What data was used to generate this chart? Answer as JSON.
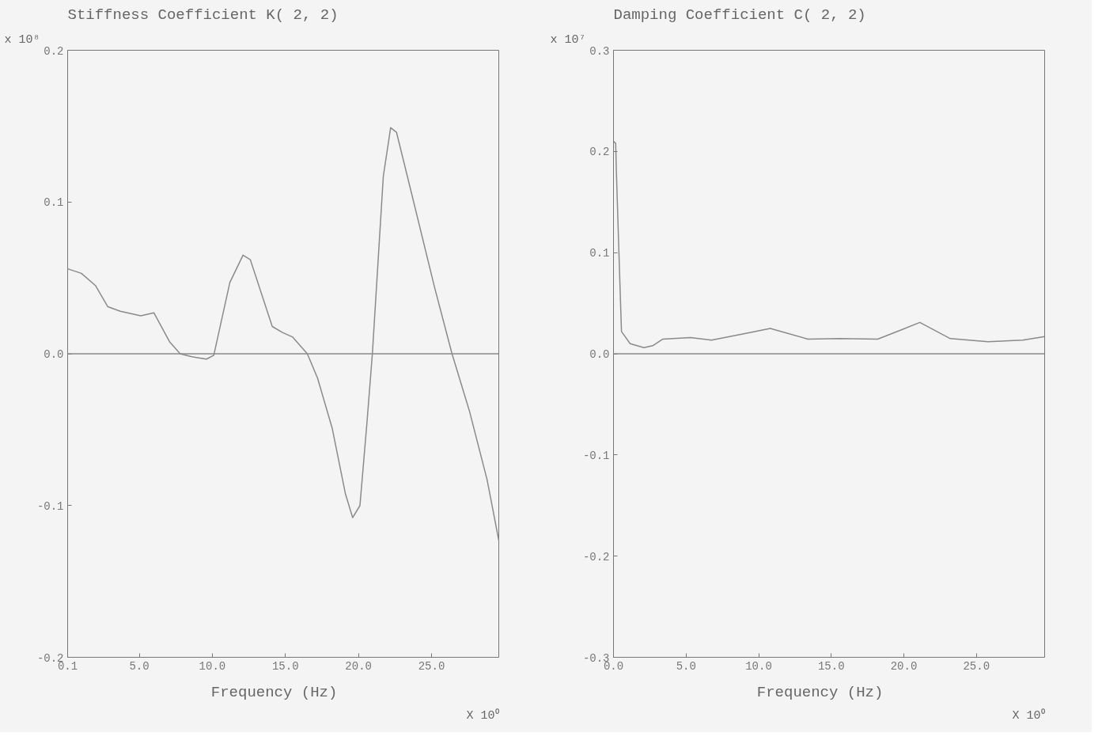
{
  "chart_data": [
    {
      "type": "line",
      "title": "Stiffness Coefficient  K( 2, 2)",
      "xlabel": "Frequency   (Hz)",
      "annotations": [
        "x 10⁸",
        "X 10⁰"
      ],
      "x": [
        0.1,
        1.04,
        2.0,
        2.85,
        3.7,
        5.1,
        6.0,
        7.07,
        7.8,
        8.6,
        9.6,
        10.1,
        11.2,
        12.1,
        12.6,
        14.1,
        14.8,
        15.5,
        16.5,
        17.2,
        18.2,
        19.1,
        19.6,
        20.1,
        20.6,
        20.95,
        21.7,
        22.2,
        22.6,
        23.7,
        25.2,
        26.4,
        27.6,
        28.8,
        29.6
      ],
      "values": [
        0.056,
        0.053,
        0.045,
        0.031,
        0.028,
        0.025,
        0.027,
        0.008,
        0.0,
        -0.002,
        -0.0035,
        -0.001,
        0.047,
        0.065,
        0.062,
        0.018,
        0.014,
        0.011,
        0.0,
        -0.016,
        -0.049,
        -0.092,
        -0.108,
        -0.1,
        -0.043,
        0.0,
        0.117,
        0.149,
        0.146,
        0.103,
        0.044,
        0.0,
        -0.038,
        -0.083,
        -0.123
      ],
      "color": "#8a8a8a",
      "xlim": [
        0.1,
        29.6
      ],
      "ylim": [
        -0.2,
        0.2
      ],
      "xticks": [
        0.1,
        {
          "value": 5,
          "label": "5.0"
        },
        {
          "value": 10,
          "label": "10.0"
        },
        {
          "value": 15,
          "label": "15.0"
        },
        {
          "value": 20,
          "label": "20.0"
        },
        {
          "value": 25,
          "label": "25.0"
        }
      ],
      "yticks": [
        -0.2,
        -0.1,
        {
          "value": 0,
          "label": "0.0"
        },
        0.1,
        0.2
      ],
      "ref_lines": [
        {
          "axis": "y",
          "value": 0,
          "color": "#8a8a8a"
        }
      ],
      "grid": false
    },
    {
      "type": "line",
      "title": "Damping Coefficient  C( 2, 2)",
      "xlabel": "Frequency   (Hz)",
      "annotations": [
        "x 10⁷",
        "X 10⁰"
      ],
      "x": [
        0.0,
        0.15,
        0.2,
        0.36,
        0.55,
        1.15,
        2.1,
        2.7,
        3.4,
        5.3,
        6.75,
        8.7,
        10.8,
        13.4,
        15.6,
        18.2,
        19.9,
        21.1,
        23.2,
        25.8,
        28.2,
        29.7
      ],
      "values": [
        0.21,
        0.208,
        0.18,
        0.106,
        0.022,
        0.01,
        0.006,
        0.008,
        0.0145,
        0.016,
        0.0135,
        0.019,
        0.025,
        0.0145,
        0.015,
        0.0145,
        0.024,
        0.031,
        0.015,
        0.012,
        0.0135,
        0.017
      ],
      "color": "#8a8a8a",
      "xlim": [
        0.0,
        29.7
      ],
      "ylim": [
        -0.3,
        0.3
      ],
      "xticks": [
        {
          "value": 0,
          "label": "0.0"
        },
        {
          "value": 5,
          "label": "5.0"
        },
        {
          "value": 10,
          "label": "10.0"
        },
        {
          "value": 15,
          "label": "15.0"
        },
        {
          "value": 20,
          "label": "20.0"
        },
        {
          "value": 25,
          "label": "25.0"
        }
      ],
      "yticks": [
        -0.3,
        -0.2,
        -0.1,
        {
          "value": 0,
          "label": "0.0"
        },
        0.1,
        0.2,
        0.3
      ],
      "ref_lines": [
        {
          "axis": "y",
          "value": 0,
          "color": "#8a8a8a"
        }
      ],
      "grid": false
    }
  ]
}
